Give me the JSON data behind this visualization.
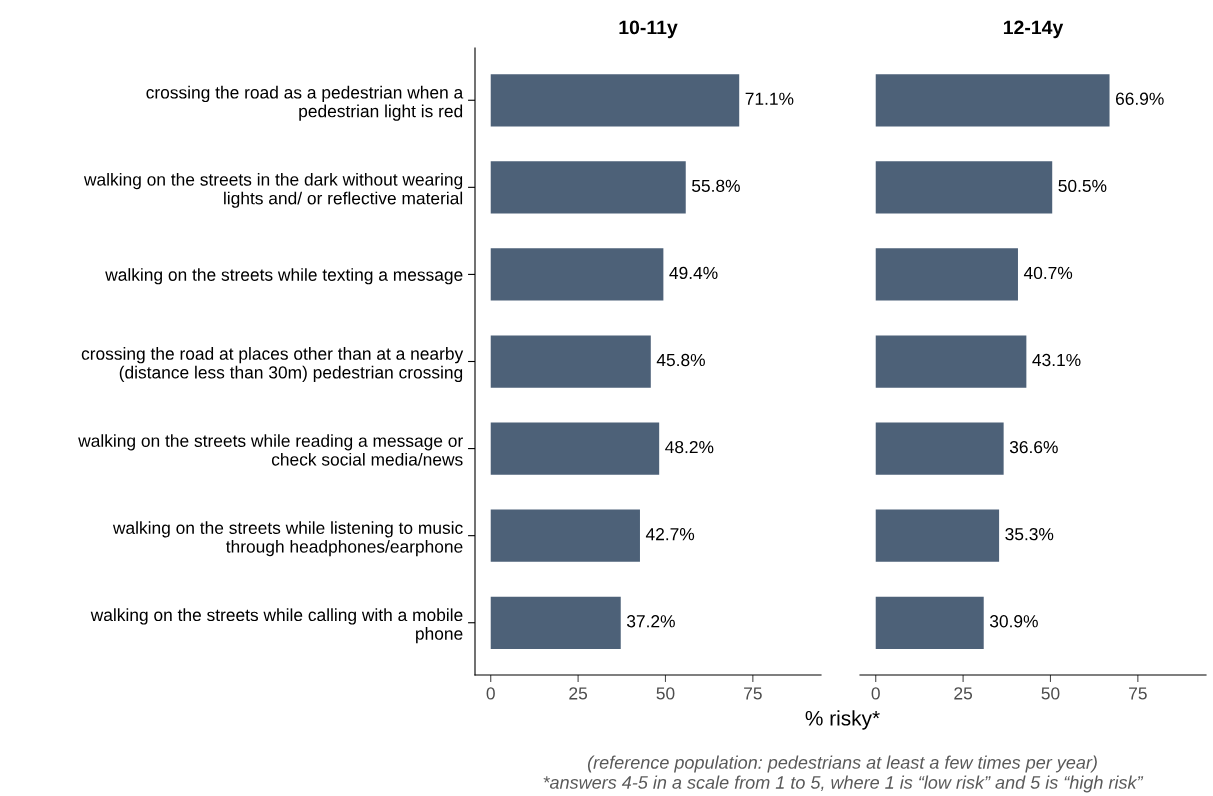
{
  "chart_data": [
    {
      "type": "bar",
      "orientation": "horizontal",
      "title": "10-11y",
      "xlabel": "% risky*",
      "categories": [
        "crossing the road as a pedestrian when a\npedestrian light is red",
        "walking on the streets in the dark without wearing\nlights and/ or reflective material",
        "walking on the streets while texting a message",
        "crossing the road at places other than at a nearby\n(distance less than 30m) pedestrian crossing",
        "walking on the streets while reading a message or\ncheck social media/news",
        "walking on the streets while listening to music\nthrough headphones/earphone",
        "walking on the streets while calling with a mobile\nphone"
      ],
      "values": [
        71.1,
        55.8,
        49.4,
        45.8,
        48.2,
        42.7,
        37.2
      ],
      "value_labels": [
        "71.1%",
        "55.8%",
        "49.4%",
        "45.8%",
        "48.2%",
        "42.7%",
        "37.2%"
      ],
      "color": "#4d6178",
      "xlim": [
        -4.5,
        94.5
      ],
      "xticks": [
        0,
        25,
        50,
        75
      ],
      "grid": false,
      "legend": false,
      "annotations": [
        "(reference population: pedestrians at least a few times per year)",
        "*answers 4-5 in a scale from 1 to 5, where 1 is “low risk” and 5 is “high risk”"
      ]
    },
    {
      "type": "bar",
      "orientation": "horizontal",
      "title": "12-14y",
      "categories": [
        null,
        null,
        null,
        null,
        null,
        null,
        null
      ],
      "values": [
        66.9,
        50.5,
        40.7,
        43.1,
        36.6,
        35.3,
        30.9
      ],
      "value_labels": [
        "66.9%",
        "50.5%",
        "40.7%",
        "43.1%",
        "36.6%",
        "35.3%",
        "30.9%"
      ],
      "color": "#4d6178",
      "xlim": [
        -4.5,
        94.5
      ],
      "xticks": [
        0,
        25,
        50,
        75
      ],
      "grid": false,
      "legend": false,
      "tick_labels": "x"
    }
  ]
}
